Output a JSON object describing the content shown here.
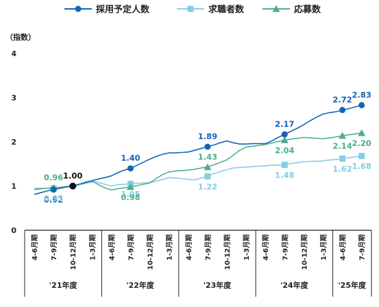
{
  "chart_data": {
    "type": "line",
    "ylabel": "（指数）",
    "ylim": [
      0,
      4
    ],
    "yticks": [
      "0",
      "1",
      "2",
      "3",
      "4"
    ],
    "legend_position": "top",
    "x_period_labels": [
      "4-6月期",
      "7-9月期",
      "10-12月期",
      "1-3月期",
      "4-6月期",
      "7-9月期",
      "10-12月期",
      "1-3月期",
      "4-6月期",
      "7-9月期",
      "10-12月期",
      "1-3月期",
      "4-6月期",
      "7-9月期",
      "10-12月期",
      "1-3月期",
      "4-6月期",
      "7-9月期"
    ],
    "fiscal_years": [
      {
        "label": "'21年度",
        "start": 0,
        "end": 3
      },
      {
        "label": "'22年度",
        "start": 4,
        "end": 7
      },
      {
        "label": "'23年度",
        "start": 8,
        "end": 11
      },
      {
        "label": "'24年度",
        "start": 12,
        "end": 15
      },
      {
        "label": "'25年度",
        "start": 16,
        "end": 17
      }
    ],
    "x_monthly": [
      0,
      0.333,
      0.667,
      1,
      1.333,
      1.667,
      2,
      2.333,
      2.667,
      3,
      3.333,
      3.667,
      4,
      4.333,
      4.667,
      5,
      5.333,
      5.667,
      6,
      6.333,
      6.667,
      7,
      7.333,
      7.667,
      8,
      8.333,
      8.667,
      9,
      9.333,
      9.667,
      10,
      10.333,
      10.667,
      11,
      11.333,
      11.667,
      12,
      12.333,
      12.667,
      13,
      13.333,
      13.667,
      14,
      14.333,
      14.667,
      15,
      15.333,
      15.667,
      16,
      16.333,
      16.667,
      17
    ],
    "series": [
      {
        "name": "採用予定人数",
        "color": "#1565b5",
        "marker": "circle",
        "values": [
          0.81,
          0.85,
          0.89,
          0.92,
          0.95,
          0.98,
          1.0,
          1.04,
          1.08,
          1.12,
          1.16,
          1.19,
          1.23,
          1.3,
          1.36,
          1.4,
          1.47,
          1.54,
          1.61,
          1.67,
          1.72,
          1.75,
          1.75,
          1.76,
          1.77,
          1.81,
          1.85,
          1.89,
          1.93,
          1.98,
          2.02,
          1.98,
          1.95,
          1.95,
          1.96,
          1.96,
          1.96,
          2.02,
          2.1,
          2.17,
          2.24,
          2.31,
          2.39,
          2.48,
          2.56,
          2.63,
          2.66,
          2.68,
          2.72,
          2.75,
          2.79,
          2.83
        ],
        "labels": [
          {
            "i": 3,
            "text": "0.92",
            "pos": "below"
          },
          {
            "i": 6,
            "text": "1.00",
            "pos": "above",
            "color": "#111111"
          },
          {
            "i": 15,
            "text": "1.40",
            "pos": "above"
          },
          {
            "i": 27,
            "text": "1.89",
            "pos": "above"
          },
          {
            "i": 39,
            "text": "2.17",
            "pos": "above"
          },
          {
            "i": 48,
            "text": "2.72",
            "pos": "above"
          },
          {
            "i": 51,
            "text": "2.83",
            "pos": "above"
          }
        ]
      },
      {
        "name": "求職者数",
        "color": "#87cde6",
        "marker": "square",
        "values": [
          0.95,
          0.95,
          0.95,
          0.95,
          0.96,
          0.98,
          1.0,
          1.03,
          1.06,
          1.09,
          1.08,
          1.04,
          1.0,
          1.03,
          1.04,
          1.05,
          1.06,
          1.07,
          1.08,
          1.11,
          1.15,
          1.19,
          1.18,
          1.17,
          1.15,
          1.14,
          1.18,
          1.22,
          1.28,
          1.33,
          1.37,
          1.41,
          1.42,
          1.43,
          1.44,
          1.45,
          1.46,
          1.47,
          1.47,
          1.48,
          1.51,
          1.53,
          1.55,
          1.56,
          1.56,
          1.57,
          1.59,
          1.6,
          1.62,
          1.64,
          1.66,
          1.68
        ],
        "labels": [
          {
            "i": 3,
            "text": "0.95",
            "pos": "below"
          },
          {
            "i": 15,
            "text": "1.05",
            "pos": "below"
          },
          {
            "i": 27,
            "text": "1.22",
            "pos": "below"
          },
          {
            "i": 39,
            "text": "1.48",
            "pos": "below"
          },
          {
            "i": 48,
            "text": "1.62",
            "pos": "below"
          },
          {
            "i": 51,
            "text": "1.68",
            "pos": "below"
          }
        ]
      },
      {
        "name": "応募数",
        "color": "#4cb08a",
        "marker": "triangle",
        "values": [
          0.92,
          0.94,
          0.95,
          0.96,
          0.97,
          0.99,
          1.0,
          1.04,
          1.09,
          1.12,
          1.03,
          0.96,
          0.91,
          0.94,
          0.96,
          0.98,
          1.01,
          1.04,
          1.07,
          1.17,
          1.26,
          1.32,
          1.34,
          1.35,
          1.36,
          1.38,
          1.41,
          1.43,
          1.48,
          1.54,
          1.59,
          1.7,
          1.81,
          1.88,
          1.9,
          1.92,
          1.94,
          1.97,
          2.01,
          2.04,
          2.06,
          2.08,
          2.1,
          2.09,
          2.08,
          2.07,
          2.09,
          2.11,
          2.14,
          2.16,
          2.18,
          2.2
        ],
        "labels": [
          {
            "i": 3,
            "text": "0.96",
            "pos": "above"
          },
          {
            "i": 15,
            "text": "0.98",
            "pos": "below"
          },
          {
            "i": 27,
            "text": "1.43",
            "pos": "above"
          },
          {
            "i": 39,
            "text": "2.04",
            "pos": "below"
          },
          {
            "i": 48,
            "text": "2.14",
            "pos": "below"
          },
          {
            "i": 51,
            "text": "2.20",
            "pos": "below"
          }
        ]
      }
    ],
    "marker_points": [
      3,
      6,
      15,
      27,
      39,
      48,
      51
    ],
    "base_point": {
      "i": 6,
      "value": 1.0,
      "color": "#111111"
    }
  }
}
